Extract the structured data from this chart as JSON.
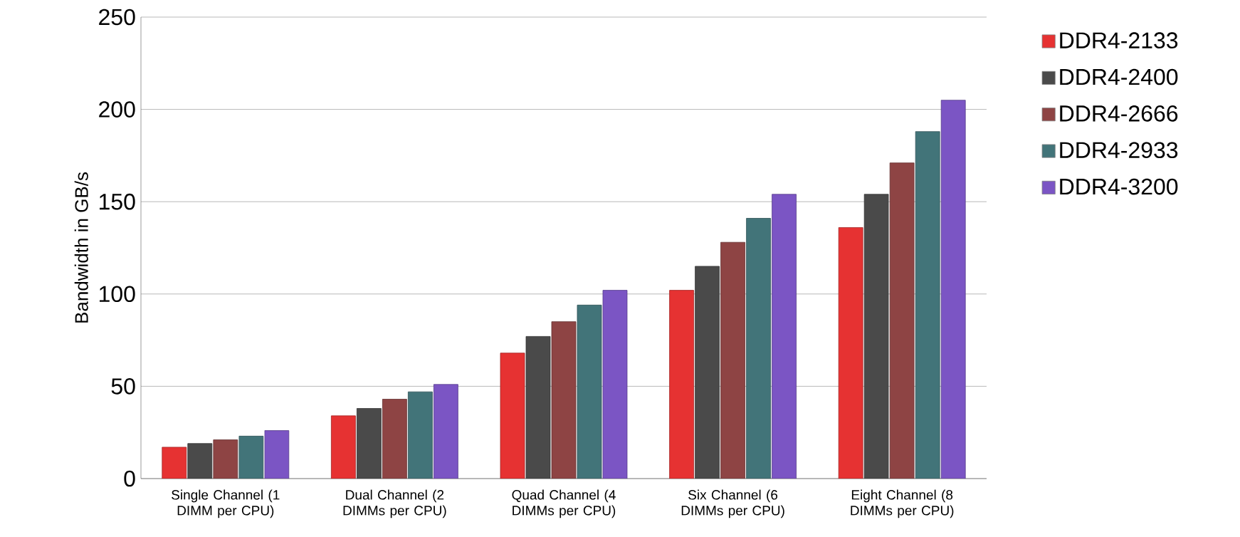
{
  "chart_data": {
    "type": "bar",
    "ylabel": "Bandwidth in GB/s",
    "categories": [
      "Single Channel (1 DIMM per CPU)",
      "Dual Channel (2 DIMMs per CPU)",
      "Quad Channel (4 DIMMs per CPU)",
      "Six Channel (6 DIMMs per CPU)",
      "Eight Channel (8 DIMMs per CPU)"
    ],
    "series": [
      {
        "name": "DDR4-2133",
        "color": "#e63232",
        "values": [
          17,
          34,
          68,
          102,
          136
        ]
      },
      {
        "name": "DDR4-2400",
        "color": "#4a4a4a",
        "values": [
          19,
          38,
          77,
          115,
          154
        ]
      },
      {
        "name": "DDR4-2666",
        "color": "#8e4444",
        "values": [
          21,
          43,
          85,
          128,
          171
        ]
      },
      {
        "name": "DDR4-2933",
        "color": "#427479",
        "values": [
          23,
          47,
          94,
          141,
          188
        ]
      },
      {
        "name": "DDR4-3200",
        "color": "#7b55c4",
        "values": [
          26,
          51,
          102,
          154,
          205
        ]
      }
    ],
    "ylim": [
      0,
      250
    ],
    "yticks": [
      0,
      50,
      100,
      150,
      200,
      250
    ],
    "grid": "y",
    "legend": "right"
  }
}
